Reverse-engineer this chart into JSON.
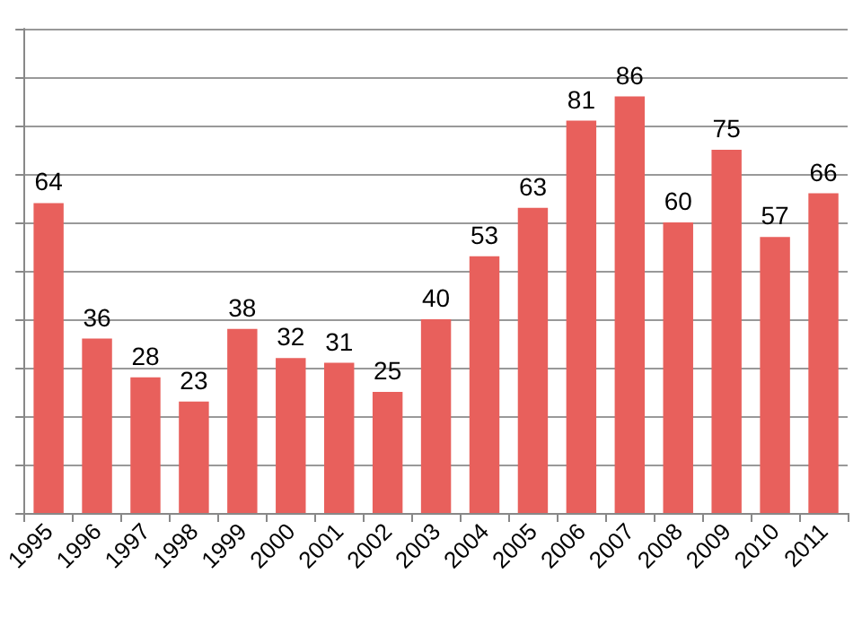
{
  "chart_data": {
    "type": "bar",
    "categories": [
      "1995",
      "1996",
      "1997",
      "1998",
      "1999",
      "2000",
      "2001",
      "2002",
      "2003",
      "2004",
      "2005",
      "2006",
      "2007",
      "2008",
      "2009",
      "2010",
      "2011"
    ],
    "values": [
      64,
      36,
      28,
      23,
      38,
      32,
      31,
      25,
      40,
      53,
      63,
      81,
      86,
      60,
      75,
      57,
      66
    ],
    "color": "#e8605c",
    "data_labels": true,
    "grid": "y",
    "tick_labels": "x",
    "ylim": [
      0,
      100
    ],
    "yticks": [
      {
        "value": 0,
        "label": null
      },
      {
        "value": 10,
        "label": null
      },
      {
        "value": 20,
        "label": null
      },
      {
        "value": 30,
        "label": null
      },
      {
        "value": 40,
        "label": null
      },
      {
        "value": 50,
        "label": null
      },
      {
        "value": 60,
        "label": null
      },
      {
        "value": 70,
        "label": null
      },
      {
        "value": 80,
        "label": null
      },
      {
        "value": 90,
        "label": null
      },
      {
        "value": 100,
        "label": null
      }
    ]
  }
}
